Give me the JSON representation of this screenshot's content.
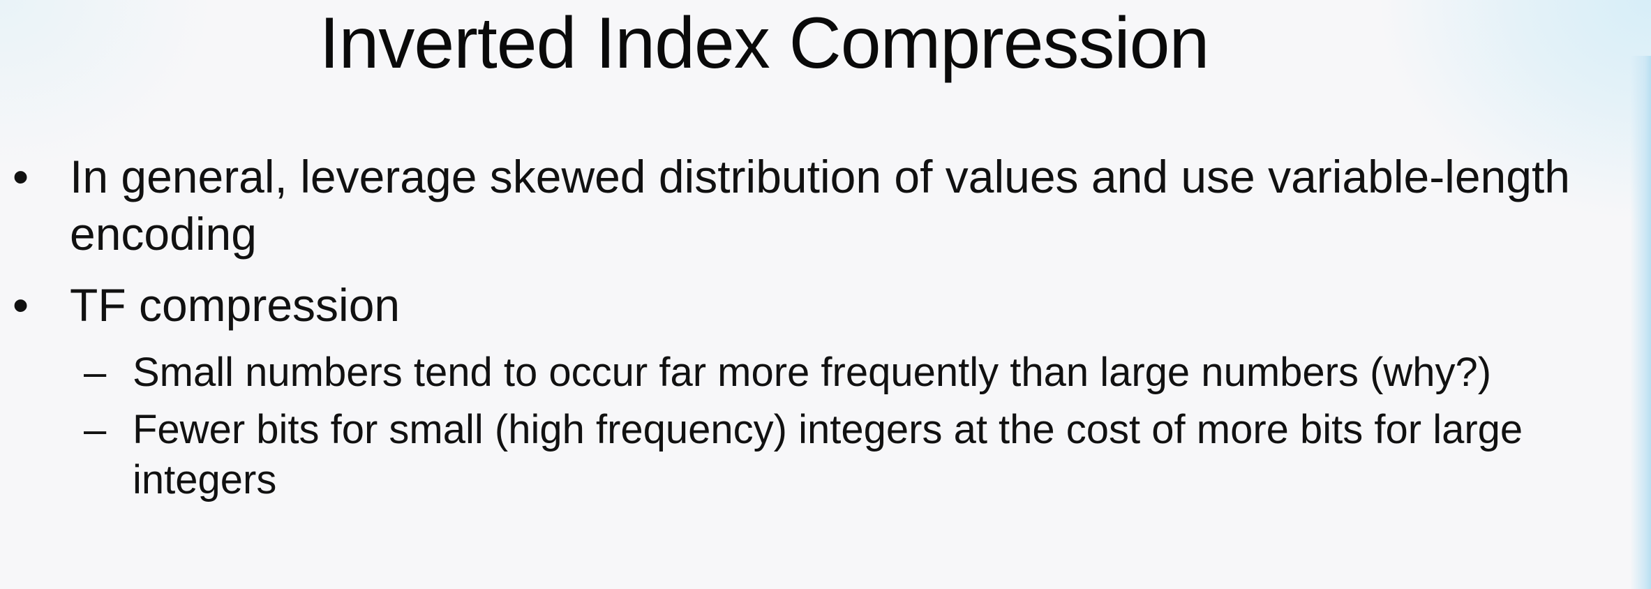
{
  "slide": {
    "title": "Inverted Index Compression",
    "bullets": [
      {
        "marker": "•",
        "text": "In general, leverage skewed distribution of values and use variable-length encoding"
      },
      {
        "marker": "•",
        "text": "TF compression",
        "sub": [
          {
            "marker": "–",
            "text": "Small numbers tend to occur far more frequently than large numbers (why?)"
          },
          {
            "marker": "–",
            "text": "Fewer bits for small (high frequency) integers at the cost of more bits for large integers"
          }
        ]
      }
    ]
  },
  "colors": {
    "background": "#f7f7f9",
    "text": "#111111",
    "accent_glow": "#d7eef8"
  }
}
